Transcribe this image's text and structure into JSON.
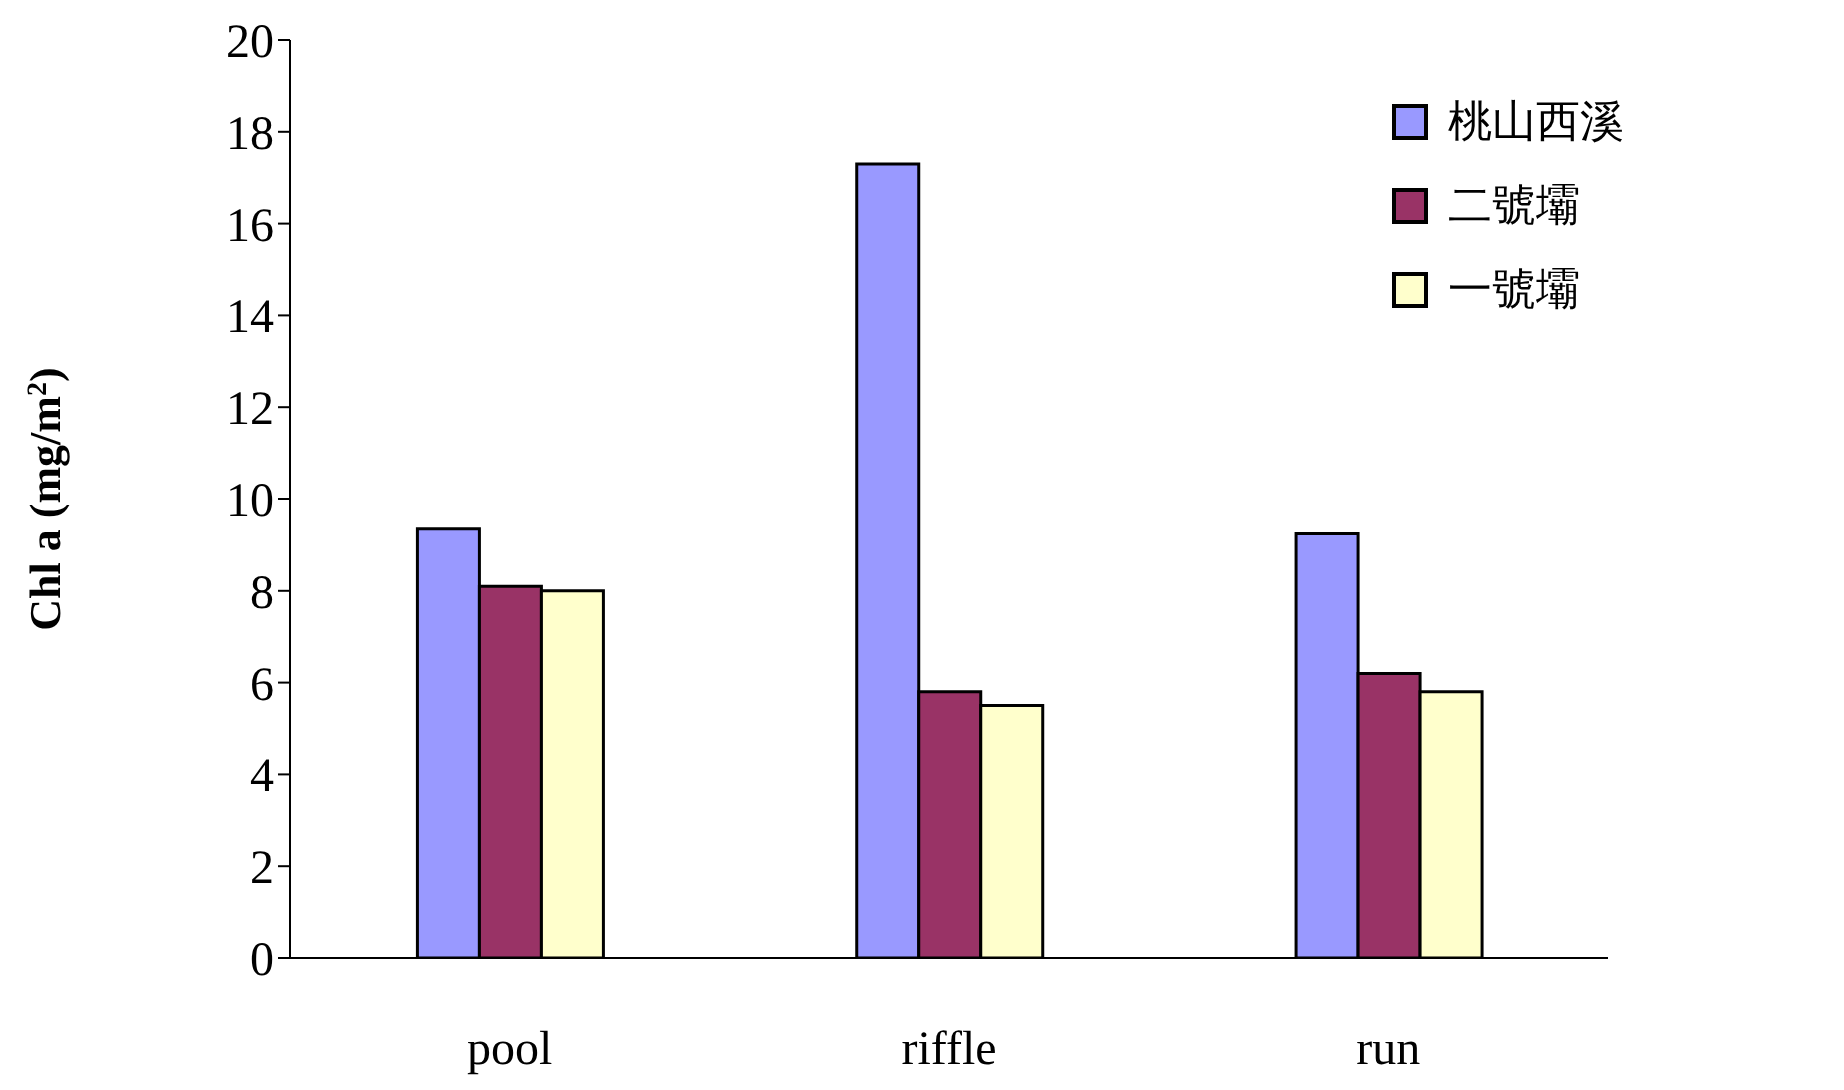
{
  "chart_data": {
    "type": "bar",
    "ylabel": "Chl a (mg/m$^{2}$)",
    "categories": [
      "pool",
      "riffle",
      "run"
    ],
    "series": [
      {
        "name": "桃山西溪",
        "color": "#9999ff",
        "values": [
          9.35,
          17.3,
          9.25
        ]
      },
      {
        "name": "二號壩",
        "color": "#993366",
        "values": [
          8.1,
          5.8,
          6.2
        ]
      },
      {
        "name": "一號壩",
        "color": "#ffffcc",
        "values": [
          8.0,
          5.5,
          5.8
        ]
      }
    ],
    "ylim": [
      0,
      20
    ],
    "yticks": [
      0,
      2,
      4,
      6,
      8,
      10,
      12,
      14,
      16,
      18,
      20
    ],
    "grid": false,
    "legend": "top right"
  }
}
